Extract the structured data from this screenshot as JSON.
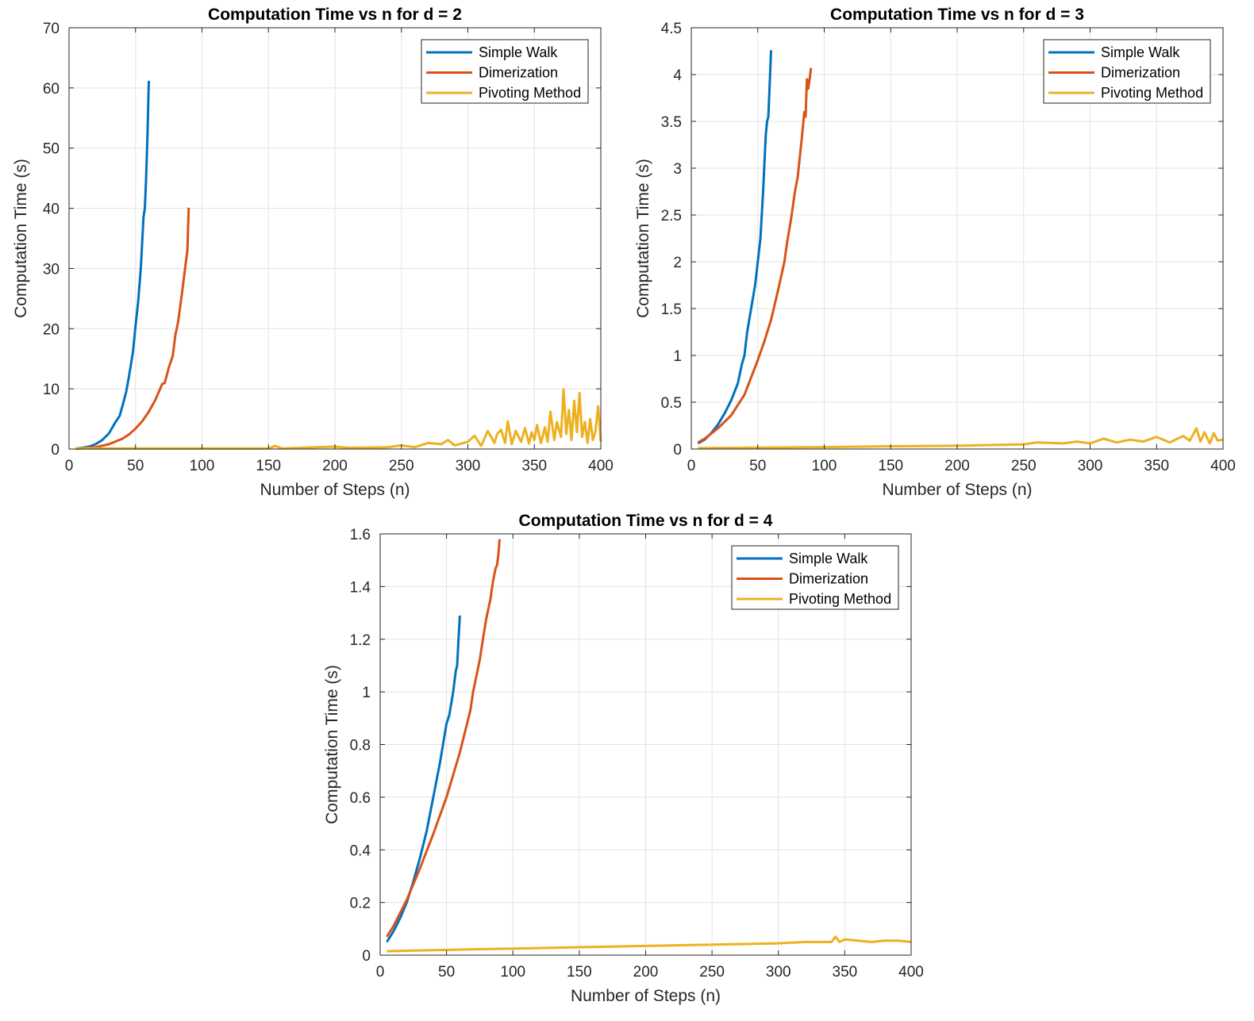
{
  "colors": {
    "simple_walk": "#0072BD",
    "dimerization": "#D95319",
    "pivoting": "#EDB120",
    "grid": "#e3e3e3",
    "axis": "#262626"
  },
  "chart_data": [
    {
      "type": "line",
      "title": "Computation Time vs n for d = 2",
      "xlabel": "Number of Steps (n)",
      "ylabel": "Computation Time (s)",
      "xlim": [
        0,
        400
      ],
      "ylim": [
        0,
        70
      ],
      "xticks": [
        0,
        50,
        100,
        150,
        200,
        250,
        300,
        350,
        400
      ],
      "xtick_labels": [
        "0",
        "50",
        "100",
        "150",
        "200",
        "250",
        "300",
        "350",
        "400"
      ],
      "yticks": [
        0,
        10,
        20,
        30,
        40,
        50,
        60,
        70
      ],
      "ytick_labels": [
        "0",
        "10",
        "20",
        "30",
        "40",
        "50",
        "60",
        "70"
      ],
      "grid": true,
      "legend_position": "top-right",
      "series": [
        {
          "name": "Simple Walk",
          "color": "#0072BD",
          "x": [
            5,
            10,
            15,
            20,
            25,
            30,
            35,
            38,
            40,
            43,
            45,
            48,
            50,
            52,
            54,
            56,
            57,
            58,
            59,
            60
          ],
          "y": [
            0.1,
            0.2,
            0.4,
            0.8,
            1.5,
            2.6,
            4.5,
            5.5,
            7.0,
            9.5,
            12.0,
            16.0,
            20.5,
            24.5,
            30.0,
            38.5,
            40.0,
            45.0,
            52.0,
            61.2
          ]
        },
        {
          "name": "Dimerization",
          "color": "#D95319",
          "x": [
            5,
            10,
            20,
            30,
            40,
            45,
            50,
            55,
            60,
            65,
            70,
            72,
            75,
            78,
            80,
            82,
            85,
            87,
            89,
            90
          ],
          "y": [
            0.05,
            0.1,
            0.3,
            0.8,
            1.7,
            2.4,
            3.4,
            4.6,
            6.2,
            8.2,
            10.8,
            11.0,
            13.5,
            15.5,
            19.0,
            21.0,
            26.0,
            29.5,
            33.0,
            40.1
          ]
        },
        {
          "name": "Pivoting Method",
          "color": "#EDB120",
          "x": [
            5,
            50,
            100,
            150,
            155,
            160,
            200,
            210,
            240,
            250,
            260,
            270,
            280,
            285,
            290,
            300,
            305,
            310,
            315,
            320,
            322,
            325,
            328,
            330,
            333,
            336,
            340,
            343,
            346,
            348,
            350,
            352,
            355,
            358,
            360,
            362,
            365,
            367,
            370,
            372,
            374,
            376,
            378,
            380,
            382,
            384,
            386,
            388,
            390,
            392,
            394,
            396,
            398,
            400
          ],
          "y": [
            0.1,
            0.1,
            0.1,
            0.1,
            0.5,
            0.1,
            0.4,
            0.2,
            0.3,
            0.6,
            0.3,
            1.0,
            0.8,
            1.5,
            0.6,
            1.2,
            2.2,
            0.5,
            3.0,
            1.0,
            2.5,
            3.2,
            1.0,
            4.6,
            0.8,
            3.0,
            1.2,
            3.5,
            0.9,
            2.8,
            1.5,
            4.0,
            1.0,
            3.6,
            1.2,
            6.2,
            1.5,
            4.5,
            2.0,
            9.9,
            2.5,
            6.5,
            1.5,
            8.0,
            2.8,
            9.3,
            2.0,
            4.5,
            1.0,
            5.0,
            1.5,
            3.0,
            7.1,
            1.2
          ]
        }
      ]
    },
    {
      "type": "line",
      "title": "Computation Time vs n for d = 3",
      "xlabel": "Number of Steps (n)",
      "ylabel": "Computation Time (s)",
      "xlim": [
        0,
        400
      ],
      "ylim": [
        0,
        4.5
      ],
      "xticks": [
        0,
        50,
        100,
        150,
        200,
        250,
        300,
        350,
        400
      ],
      "xtick_labels": [
        "0",
        "50",
        "100",
        "150",
        "200",
        "250",
        "300",
        "350",
        "400"
      ],
      "yticks": [
        0,
        0.5,
        1,
        1.5,
        2,
        2.5,
        3,
        3.5,
        4,
        4.5
      ],
      "ytick_labels": [
        "0",
        "0.5",
        "1",
        "1.5",
        "2",
        "2.5",
        "3",
        "3.5",
        "4",
        "4.5"
      ],
      "grid": true,
      "legend_position": "top-right",
      "series": [
        {
          "name": "Simple Walk",
          "color": "#0072BD",
          "x": [
            5,
            10,
            15,
            20,
            25,
            30,
            35,
            38,
            40,
            42,
            45,
            48,
            50,
            52,
            54,
            56,
            57,
            58,
            59,
            60
          ],
          "y": [
            0.06,
            0.1,
            0.17,
            0.26,
            0.38,
            0.52,
            0.7,
            0.9,
            1.0,
            1.25,
            1.5,
            1.75,
            2.0,
            2.25,
            2.75,
            3.35,
            3.5,
            3.55,
            3.9,
            4.26
          ]
        },
        {
          "name": "Dimerization",
          "color": "#D95319",
          "x": [
            5,
            10,
            20,
            30,
            40,
            50,
            55,
            60,
            65,
            70,
            72,
            75,
            78,
            80,
            83,
            85,
            86,
            87,
            88,
            89,
            90
          ],
          "y": [
            0.07,
            0.11,
            0.22,
            0.36,
            0.58,
            0.95,
            1.15,
            1.38,
            1.68,
            2.0,
            2.2,
            2.45,
            2.75,
            2.9,
            3.3,
            3.6,
            3.55,
            3.95,
            3.85,
            3.95,
            4.07
          ]
        },
        {
          "name": "Pivoting Method",
          "color": "#EDB120",
          "x": [
            5,
            50,
            100,
            150,
            200,
            250,
            260,
            280,
            290,
            300,
            310,
            320,
            330,
            340,
            350,
            360,
            370,
            375,
            380,
            383,
            386,
            390,
            393,
            396,
            400
          ],
          "y": [
            0.01,
            0.015,
            0.02,
            0.03,
            0.035,
            0.05,
            0.07,
            0.06,
            0.08,
            0.06,
            0.11,
            0.07,
            0.1,
            0.08,
            0.13,
            0.07,
            0.14,
            0.09,
            0.22,
            0.08,
            0.18,
            0.06,
            0.17,
            0.09,
            0.1
          ]
        }
      ]
    },
    {
      "type": "line",
      "title": "Computation Time vs n for d = 4",
      "xlabel": "Number of Steps (n)",
      "ylabel": "Computation Time (s)",
      "xlim": [
        0,
        400
      ],
      "ylim": [
        0,
        1.6
      ],
      "xticks": [
        0,
        50,
        100,
        150,
        200,
        250,
        300,
        350,
        400
      ],
      "xtick_labels": [
        "0",
        "50",
        "100",
        "150",
        "200",
        "250",
        "300",
        "350",
        "400"
      ],
      "yticks": [
        0,
        0.2,
        0.4,
        0.6,
        0.8,
        1,
        1.2,
        1.4,
        1.6
      ],
      "ytick_labels": [
        "0",
        "0.2",
        "0.4",
        "0.6",
        "0.8",
        "1",
        "1.2",
        "1.4",
        "1.6"
      ],
      "grid": true,
      "legend_position": "top-right",
      "series": [
        {
          "name": "Simple Walk",
          "color": "#0072BD",
          "x": [
            5,
            10,
            15,
            20,
            25,
            30,
            35,
            40,
            45,
            50,
            52,
            55,
            57,
            58,
            59,
            60
          ],
          "y": [
            0.05,
            0.09,
            0.14,
            0.2,
            0.28,
            0.37,
            0.47,
            0.6,
            0.73,
            0.88,
            0.91,
            1.0,
            1.08,
            1.1,
            1.2,
            1.29
          ]
        },
        {
          "name": "Dimerization",
          "color": "#D95319",
          "x": [
            5,
            10,
            20,
            30,
            40,
            50,
            60,
            65,
            68,
            70,
            75,
            78,
            80,
            83,
            85,
            87,
            88,
            89,
            90
          ],
          "y": [
            0.07,
            0.11,
            0.21,
            0.33,
            0.46,
            0.6,
            0.77,
            0.87,
            0.93,
            1.0,
            1.12,
            1.22,
            1.28,
            1.35,
            1.42,
            1.47,
            1.48,
            1.52,
            1.58
          ]
        },
        {
          "name": "Pivoting Method",
          "color": "#EDB120",
          "x": [
            5,
            50,
            100,
            150,
            200,
            250,
            300,
            320,
            340,
            343,
            346,
            350,
            360,
            370,
            380,
            390,
            400
          ],
          "y": [
            0.015,
            0.02,
            0.025,
            0.03,
            0.035,
            0.04,
            0.045,
            0.05,
            0.05,
            0.07,
            0.05,
            0.06,
            0.055,
            0.05,
            0.055,
            0.055,
            0.05
          ]
        }
      ]
    }
  ]
}
